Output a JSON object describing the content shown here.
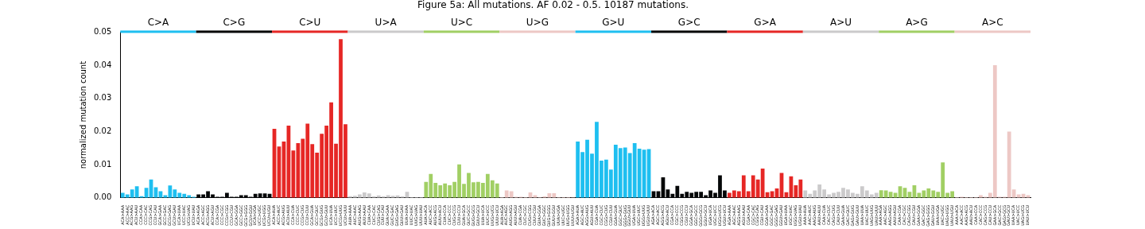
{
  "chart_data": {
    "type": "bar",
    "title": "Figure 5a: All mutations. AF 0.02 - 0.5. 10187 mutations.",
    "y_label": "normalized mutation count",
    "grid": false,
    "ylim": [
      0,
      0.05
    ],
    "yticks": [
      {
        "value": 0,
        "label": "0.00"
      },
      {
        "value": 0.01,
        "label": "0.01"
      },
      {
        "value": 0.02,
        "label": "0.02"
      },
      {
        "value": 0.03,
        "label": "0.03"
      },
      {
        "value": 0.04,
        "label": "0.04"
      },
      {
        "value": 0.05,
        "label": "0.05"
      }
    ],
    "groups": [
      {
        "name": "C>A",
        "color": "#1ebff0"
      },
      {
        "name": "C>G",
        "color": "#050708"
      },
      {
        "name": "C>U",
        "color": "#e62725"
      },
      {
        "name": "U>A",
        "color": "#cbcacb"
      },
      {
        "name": "U>C",
        "color": "#a1cf64"
      },
      {
        "name": "U>G",
        "color": "#edc8c5"
      },
      {
        "name": "G>U",
        "color": "#1ebff0"
      },
      {
        "name": "G>C",
        "color": "#050708"
      },
      {
        "name": "G>A",
        "color": "#e62725"
      },
      {
        "name": "A>U",
        "color": "#cbcacb"
      },
      {
        "name": "A>G",
        "color": "#a1cf64"
      },
      {
        "name": "A>C",
        "color": "#edc8c5"
      }
    ],
    "categories": [
      "ACA>AAA",
      "ACC>AAC",
      "ACG>AAG",
      "ACU>AAU",
      "CCA>CAA",
      "CCC>CAC",
      "CCG>CAG",
      "CCU>CAU",
      "GCA>GAA",
      "GCC>GAC",
      "GCG>GAG",
      "GCU>GAU",
      "UCA>UAA",
      "UCC>UAC",
      "UCG>UAG",
      "UCU>UAU",
      "ACA>AGA",
      "ACC>AGC",
      "ACG>AGG",
      "ACU>AGU",
      "CCA>CGA",
      "CCC>CGC",
      "CCG>CGG",
      "CCU>CGU",
      "GCA>GGA",
      "GCC>GGC",
      "GCG>GGG",
      "GCU>GGU",
      "UCA>UGA",
      "UCC>UGC",
      "UCG>UGG",
      "UCU>UGU",
      "ACA>AUA",
      "ACC>AUC",
      "ACG>AUG",
      "ACU>AUU",
      "CCA>CUA",
      "CCC>CUC",
      "CCG>CUG",
      "CCU>CUU",
      "GCA>GUA",
      "GCC>GUC",
      "GCG>GUG",
      "GCU>GUU",
      "UCA>UUA",
      "UCC>UUC",
      "UCG>UUG",
      "UCU>UUU",
      "AUA>AAA",
      "AUC>AAC",
      "AUG>AAG",
      "AUU>AAU",
      "CUA>CAA",
      "CUC>CAC",
      "CUG>CAG",
      "CUU>CAU",
      "GUA>GAA",
      "GUC>GAC",
      "GUG>GAG",
      "GUU>GAU",
      "UUA>UAA",
      "UUC>UAC",
      "UUG>UAG",
      "UUU>UAU",
      "AUA>ACA",
      "AUC>ACC",
      "AUG>ACG",
      "AUU>ACU",
      "CUA>CCA",
      "CUC>CCC",
      "CUG>CCG",
      "CUU>CCU",
      "GUA>GCA",
      "GUC>GCC",
      "GUG>GCG",
      "GUU>GCU",
      "UUA>UCA",
      "UUC>UCC",
      "UUG>UCG",
      "UUU>UCU",
      "AUA>AGA",
      "AUC>AGC",
      "AUG>AGG",
      "AUU>AGU",
      "CUA>CGA",
      "CUC>CGC",
      "CUG>CGG",
      "CUU>CGU",
      "GUA>GGA",
      "GUC>GGC",
      "GUG>GGG",
      "GUU>GGU",
      "UUA>UGA",
      "UUC>UGC",
      "UUG>UGG",
      "UUU>UGU",
      "AGA>AUA",
      "AGC>AUC",
      "AGG>AUG",
      "AGU>AUU",
      "CGA>CUA",
      "CGC>CUC",
      "CGG>CUG",
      "CGU>CUU",
      "GGA>GUA",
      "GGC>GUC",
      "GGG>GUG",
      "GGU>GUU",
      "UGA>UUA",
      "UGC>UUC",
      "UGG>UUG",
      "UGU>UUU",
      "AGA>ACA",
      "AGC>ACC",
      "AGG>ACG",
      "AGU>ACU",
      "CGA>CCA",
      "CGC>CCC",
      "CGG>CCG",
      "CGU>CCU",
      "GGA>GCA",
      "GGC>GCC",
      "GGG>GCG",
      "GGU>GCU",
      "UGA>UCA",
      "UGC>UCC",
      "UGG>UCG",
      "UGU>UCU",
      "AGA>AAA",
      "AGC>AAC",
      "AGG>AAG",
      "AGU>AAU",
      "CGA>CAA",
      "CGC>CAC",
      "CGG>CAG",
      "CGU>CAU",
      "GGA>GAA",
      "GGC>GAC",
      "GGG>GAG",
      "GGU>GAU",
      "UGA>UAA",
      "UGC>UAC",
      "UGG>UAG",
      "UGU>UAU",
      "AAA>AUA",
      "AAC>AUC",
      "AAG>AUG",
      "AAU>AUU",
      "CAA>CUA",
      "CAC>CUC",
      "CAG>CUG",
      "CAU>CUU",
      "GAA>GUA",
      "GAC>GUC",
      "GAG>GUG",
      "GAU>GUU",
      "UAA>UUA",
      "UAC>UUC",
      "UAG>UUG",
      "UAU>UUU",
      "AAA>AGA",
      "AAC>AGC",
      "AAG>AGG",
      "AAU>AGU",
      "CAA>CGA",
      "CAC>CGC",
      "CAG>CGG",
      "CAU>CGU",
      "GAA>GGA",
      "GAC>GGC",
      "GAG>GGG",
      "GAU>GGU",
      "UAA>UGA",
      "UAC>UGC",
      "UAG>UGG",
      "UAU>UGU",
      "AAA>ACA",
      "AAC>ACC",
      "AAG>ACG",
      "AAU>ACU",
      "CAA>CCA",
      "CAC>CCC",
      "CAG>CCG",
      "CAU>CCU",
      "GAA>GCA",
      "GAC>GCC",
      "GAG>GCG",
      "GAU>GCU",
      "UAA>UCA",
      "UAC>UCC",
      "UAG>UCG",
      "UAU>UCU"
    ],
    "values": [
      0.0015,
      0.001,
      0.0025,
      0.0035,
      0.0005,
      0.003,
      0.0055,
      0.0032,
      0.002,
      0.0008,
      0.0037,
      0.0025,
      0.0015,
      0.0012,
      0.0008,
      0.0003,
      0.001,
      0.001,
      0.002,
      0.001,
      0.0003,
      0.0003,
      0.0015,
      0.0003,
      0.0003,
      0.0008,
      0.0008,
      0.0003,
      0.0012,
      0.0013,
      0.0013,
      0.0012,
      0.0208,
      0.0155,
      0.017,
      0.0218,
      0.0143,
      0.0165,
      0.0178,
      0.0224,
      0.0162,
      0.0136,
      0.0193,
      0.0218,
      0.0288,
      0.0163,
      0.0479,
      0.0222,
      0.0005,
      0.0006,
      0.001,
      0.0016,
      0.0013,
      0.0004,
      0.0007,
      0.0004,
      0.0008,
      0.0006,
      0.0007,
      0.0004,
      0.0018,
      0.0002,
      0.0002,
      0.0002,
      0.0048,
      0.0072,
      0.0045,
      0.0038,
      0.0043,
      0.0038,
      0.0048,
      0.0101,
      0.0042,
      0.0075,
      0.0047,
      0.0048,
      0.0045,
      0.0072,
      0.0053,
      0.0043,
      0.0002,
      0.0022,
      0.002,
      0.0003,
      0.0003,
      0.0002,
      0.0016,
      0.0008,
      0.0002,
      0.0004,
      0.0014,
      0.0014,
      0.0002,
      0.0002,
      0.0002,
      0.0001,
      0.017,
      0.0138,
      0.0175,
      0.0133,
      0.0229,
      0.0112,
      0.0115,
      0.0085,
      0.016,
      0.015,
      0.0152,
      0.0135,
      0.0165,
      0.0148,
      0.0145,
      0.0147,
      0.002,
      0.002,
      0.0062,
      0.0025,
      0.0012,
      0.0036,
      0.0012,
      0.0018,
      0.0015,
      0.0018,
      0.0018,
      0.0008,
      0.0022,
      0.0015,
      0.0068,
      0.0022,
      0.0015,
      0.0022,
      0.002,
      0.0068,
      0.002,
      0.0068,
      0.0055,
      0.0088,
      0.0017,
      0.002,
      0.0028,
      0.0075,
      0.0017,
      0.0065,
      0.0038,
      0.0055,
      0.0022,
      0.0012,
      0.0022,
      0.004,
      0.0025,
      0.001,
      0.0015,
      0.0018,
      0.003,
      0.0025,
      0.0015,
      0.0012,
      0.0035,
      0.0022,
      0.001,
      0.0015,
      0.0023,
      0.0022,
      0.0018,
      0.0015,
      0.0035,
      0.003,
      0.0018,
      0.0038,
      0.0015,
      0.0022,
      0.0028,
      0.0022,
      0.0018,
      0.0107,
      0.0015,
      0.002,
      0.0002,
      0.0003,
      0.0002,
      0.0002,
      0.0002,
      0.0008,
      0.0003,
      0.0015,
      0.04,
      0.0003,
      0.0003,
      0.02,
      0.0025,
      0.001,
      0.0012,
      0.0008
    ]
  }
}
